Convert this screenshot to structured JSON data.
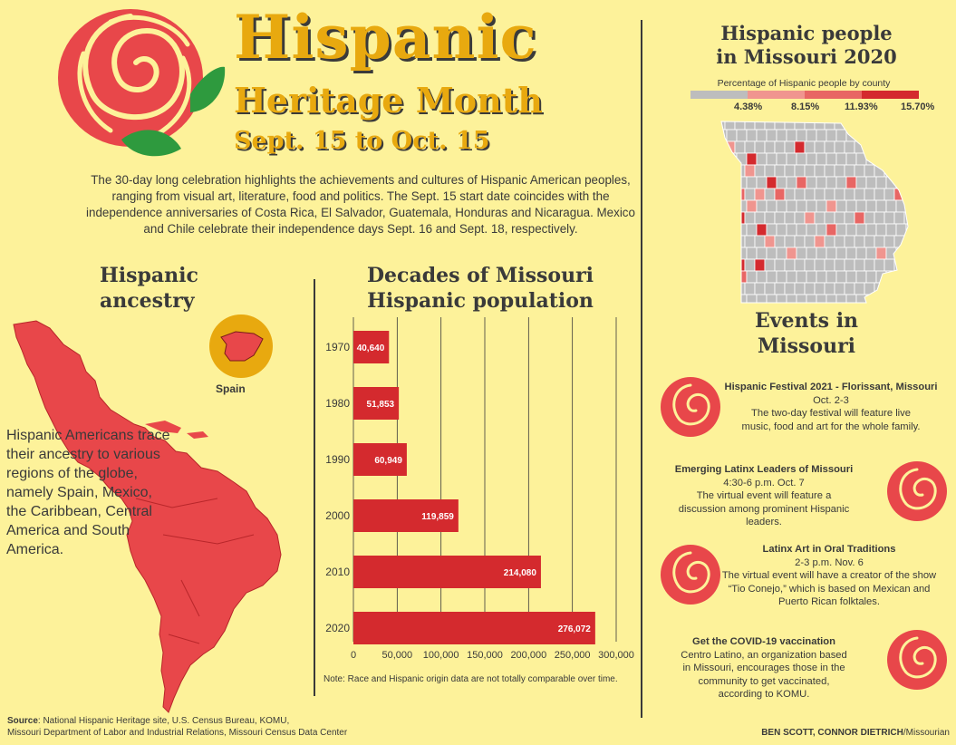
{
  "header": {
    "title": "Hispanic",
    "subtitle": "Heritage Month",
    "dates": "Sept. 15 to Oct. 15",
    "intro": "The 30-day long celebration highlights the achievements and cultures of Hispanic American peoples, ranging from visual art, literature, food and politics. The Sept. 15 start date coincides with the independence anniversaries of Costa Rica, El Salvador, Guatemala, Honduras and Nicaragua. Mexico and Chile celebrate their independence days Sept. 16 and Sept. 18, respectively."
  },
  "ancestry": {
    "title_line1": "Hispanic",
    "title_line2": "ancestry",
    "spain_label": "Spain",
    "text": "Hispanic Americans trace their ancestry to various regions of the globe, namely Spain, Mexico, the Caribbean, Central America and South America."
  },
  "decades": {
    "title_line1": "Decades of Missouri",
    "title_line2": "Hispanic population",
    "note": "Note: Race and Hispanic origin data are not totally comparable over time."
  },
  "chart_data": {
    "type": "bar",
    "orientation": "horizontal",
    "title": "Decades of Missouri Hispanic population",
    "categories": [
      "1970",
      "1980",
      "1990",
      "2000",
      "2010",
      "2020"
    ],
    "values": [
      40640,
      51853,
      60949,
      119859,
      214080,
      276072
    ],
    "value_labels": [
      "40,640",
      "51,853",
      "60,949",
      "119,859",
      "214,080",
      "276,072"
    ],
    "xlim": [
      0,
      300000
    ],
    "xticks": [
      0,
      50000,
      100000,
      150000,
      200000,
      250000,
      300000
    ],
    "xtick_labels": [
      "0",
      "50,000",
      "100,000",
      "150,000",
      "200,000",
      "250,000",
      "300,000"
    ],
    "grid": true,
    "bar_color": "#d42a2e"
  },
  "map": {
    "title_line1": "Hispanic people",
    "title_line2": "in Missouri 2020",
    "legend_caption": "Percentage of Hispanic people by county",
    "legend_values": [
      "4.38%",
      "8.15%",
      "11.93%",
      "15.70%"
    ],
    "legend_colors": [
      "#bdbdbd",
      "#f0958f",
      "#e86664",
      "#d42a2e"
    ]
  },
  "events": {
    "title_line1": "Events in",
    "title_line2": "Missouri",
    "items": [
      {
        "title": "Hispanic Festival 2021 - Florissant, Missouri",
        "when": "Oct. 2-3",
        "desc": "The two-day festival will feature live music, food and art for the whole family."
      },
      {
        "title": "Emerging Latinx Leaders of Missouri",
        "when": "4:30-6 p.m. Oct. 7",
        "desc": "The virtual event will feature a discussion among prominent Hispanic leaders."
      },
      {
        "title": "Latinx Art in Oral Traditions",
        "when": "2-3 p.m. Nov. 6",
        "desc": "The virtual event will have a creator of the show “Tio Conejo,” which is based on Mexican and Puerto Rican folktales."
      },
      {
        "title": "Get the COVID-19 vaccination",
        "when": "",
        "desc": "Centro Latino, an organization based in Missouri, encourages those in the community to get vaccinated, according to KOMU."
      }
    ]
  },
  "footer": {
    "source_label": "Source",
    "source_line1": ": National Hispanic Heritage site, U.S. Census Bureau, KOMU,",
    "source_line2": "Missouri Department of Labor and Industrial Relations, Missouri Census Data Center",
    "credit_names": "BEN SCOTT, CONNOR DIETRICH",
    "credit_outlet": "/Missourian"
  },
  "colors": {
    "background": "#fdf29a",
    "accent_gold": "#e8a90f",
    "red": "#d42a2e",
    "map_red": "#e8474a",
    "leaf_green": "#2e9a3e",
    "text_dark": "#3a3a3a"
  }
}
